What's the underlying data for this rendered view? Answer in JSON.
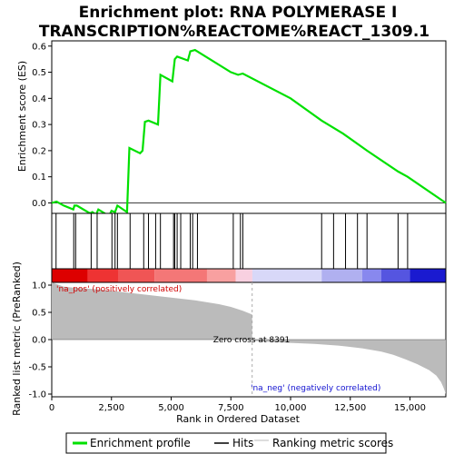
{
  "title_line1": "Enrichment plot: RNA POLYMERASE I",
  "title_line2": "TRANSCRIPTION%REACTOME%REACT_1309.1",
  "legend": {
    "enrichment": "Enrichment profile",
    "hits": "Hits",
    "ranking": "Ranking metric scores"
  },
  "colors": {
    "enrichment": "#00e000",
    "hits": "#000000",
    "ranking": "#bbbbbb",
    "pos_label": "#d00000",
    "neg_label": "#1010d0"
  },
  "chart_data": {
    "type": "line",
    "title": "Enrichment plot: RNA POLYMERASE I TRANSCRIPTION%REACTOME%REACT_1309.1",
    "top": {
      "ylabel": "Enrichment score (ES)",
      "ylim": [
        -0.04,
        0.62
      ],
      "yticks": [
        0.0,
        0.1,
        0.2,
        0.3,
        0.4,
        0.5,
        0.6
      ],
      "xlim": [
        0,
        16500
      ],
      "es_curve": [
        [
          0,
          0.0
        ],
        [
          200,
          0.005
        ],
        [
          500,
          -0.01
        ],
        [
          900,
          -0.025
        ],
        [
          950,
          -0.01
        ],
        [
          1050,
          -0.01
        ],
        [
          1600,
          -0.04
        ],
        [
          1700,
          -0.035
        ],
        [
          1850,
          -0.045
        ],
        [
          1950,
          -0.025
        ],
        [
          2400,
          -0.05
        ],
        [
          2500,
          -0.03
        ],
        [
          2650,
          -0.035
        ],
        [
          2750,
          -0.01
        ],
        [
          3150,
          -0.035
        ],
        [
          3250,
          0.21
        ],
        [
          3700,
          0.19
        ],
        [
          3800,
          0.2
        ],
        [
          3900,
          0.31
        ],
        [
          4050,
          0.315
        ],
        [
          4450,
          0.3
        ],
        [
          4550,
          0.49
        ],
        [
          5050,
          0.465
        ],
        [
          5150,
          0.55
        ],
        [
          5250,
          0.56
        ],
        [
          5700,
          0.545
        ],
        [
          5800,
          0.58
        ],
        [
          6000,
          0.585
        ],
        [
          7500,
          0.5
        ],
        [
          7800,
          0.49
        ],
        [
          8000,
          0.495
        ],
        [
          10000,
          0.4
        ],
        [
          11300,
          0.315
        ],
        [
          12200,
          0.265
        ],
        [
          13200,
          0.2
        ],
        [
          14500,
          0.12
        ],
        [
          14900,
          0.1
        ],
        [
          16500,
          0.0
        ]
      ],
      "hits": [
        180,
        920,
        1000,
        1650,
        1900,
        2520,
        2650,
        2750,
        3280,
        3850,
        4050,
        4350,
        4550,
        5100,
        5150,
        5250,
        5400,
        5800,
        5900,
        6100,
        7600,
        7900,
        8000,
        11300,
        11800,
        12300,
        12800,
        13200,
        14500,
        14900
      ]
    },
    "bottom": {
      "xlabel": "Rank in Ordered Dataset",
      "ylabel": "Ranked list metric (PreRanked)",
      "ylim": [
        -1.05,
        1.05
      ],
      "yticks": [
        -1.0,
        -0.5,
        0.0,
        0.5,
        1.0
      ],
      "xticks": [
        0,
        2500,
        5000,
        7500,
        10000,
        12500,
        15000
      ],
      "xlim": [
        0,
        16500
      ],
      "ranking_curve": [
        [
          0,
          1.05
        ],
        [
          500,
          0.97
        ],
        [
          1000,
          0.95
        ],
        [
          2000,
          0.92
        ],
        [
          3000,
          0.87
        ],
        [
          4000,
          0.82
        ],
        [
          5000,
          0.77
        ],
        [
          6000,
          0.72
        ],
        [
          7000,
          0.65
        ],
        [
          7500,
          0.6
        ],
        [
          8000,
          0.53
        ],
        [
          8391,
          0.46
        ],
        [
          8391,
          -0.02
        ],
        [
          9000,
          -0.04
        ],
        [
          10000,
          -0.06
        ],
        [
          11000,
          -0.08
        ],
        [
          12000,
          -0.11
        ],
        [
          13000,
          -0.16
        ],
        [
          13800,
          -0.22
        ],
        [
          14300,
          -0.28
        ],
        [
          14800,
          -0.36
        ],
        [
          15300,
          -0.45
        ],
        [
          15800,
          -0.56
        ],
        [
          16100,
          -0.66
        ],
        [
          16300,
          -0.78
        ],
        [
          16400,
          -0.88
        ],
        [
          16500,
          -1.0
        ]
      ],
      "zero_cross_label": "Zero cross at 8391",
      "zero_cross": 8391,
      "pos_label": "'na_pos' (positively correlated)",
      "neg_label": "'na_neg' (negatively correlated)"
    },
    "color_bar": [
      {
        "from": 0,
        "to": 1500,
        "color": "#dd0000"
      },
      {
        "from": 1500,
        "to": 2800,
        "color": "#ee3333"
      },
      {
        "from": 2800,
        "to": 4300,
        "color": "#f05555"
      },
      {
        "from": 4300,
        "to": 6500,
        "color": "#f47777"
      },
      {
        "from": 6500,
        "to": 7700,
        "color": "#f8a0a0"
      },
      {
        "from": 7700,
        "to": 8400,
        "color": "#f8d0e0"
      },
      {
        "from": 8400,
        "to": 11300,
        "color": "#d8d8f8"
      },
      {
        "from": 11300,
        "to": 13000,
        "color": "#b0b0f0"
      },
      {
        "from": 13000,
        "to": 13800,
        "color": "#8888ee"
      },
      {
        "from": 13800,
        "to": 15000,
        "color": "#5555e0"
      },
      {
        "from": 15000,
        "to": 16500,
        "color": "#1a1ad0"
      }
    ]
  }
}
